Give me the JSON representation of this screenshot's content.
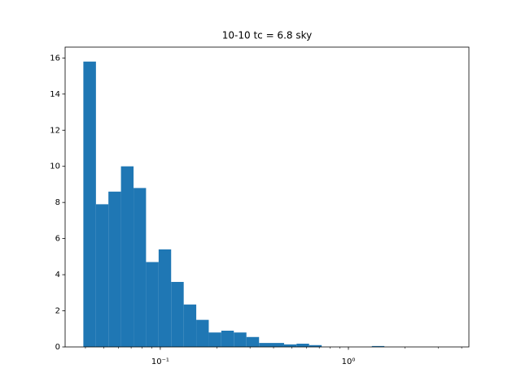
{
  "chart_data": {
    "type": "histogram",
    "title": "10-10 tc = 6.8 sky",
    "bins": [
      0.039,
      0.0455,
      0.053,
      0.0618,
      0.0721,
      0.084,
      0.098,
      0.1142,
      0.1332,
      0.1553,
      0.181,
      0.211,
      0.246,
      0.287,
      0.335,
      0.39,
      0.455,
      0.53,
      0.618,
      0.721,
      0.84,
      0.98,
      1.142,
      1.332,
      1.553,
      1.81,
      2.11,
      2.46,
      2.868,
      3.344,
      3.9
    ],
    "values": [
      15.8,
      7.9,
      8.6,
      10.0,
      8.8,
      4.7,
      5.4,
      3.6,
      2.35,
      1.5,
      0.8,
      0.9,
      0.8,
      0.55,
      0.22,
      0.22,
      0.14,
      0.18,
      0.1,
      0,
      0,
      0,
      0,
      0.05,
      0,
      0,
      0,
      0,
      0,
      0
    ],
    "color": "#1f77b4",
    "xscale": "log",
    "xlim": [
      0.0312,
      4.37
    ],
    "ylim": [
      0,
      16.6
    ],
    "xticks": [
      {
        "value": 0.1,
        "label": "10⁻¹"
      },
      {
        "value": 1,
        "label": "10⁰"
      }
    ],
    "xminorticks": [
      0.04,
      0.05,
      0.06,
      0.07,
      0.08,
      0.09,
      0.2,
      0.3,
      0.4,
      0.5,
      0.6,
      0.7,
      0.8,
      0.9,
      2,
      3,
      4
    ],
    "yticks": [
      0,
      2,
      4,
      6,
      8,
      10,
      12,
      14,
      16
    ]
  }
}
